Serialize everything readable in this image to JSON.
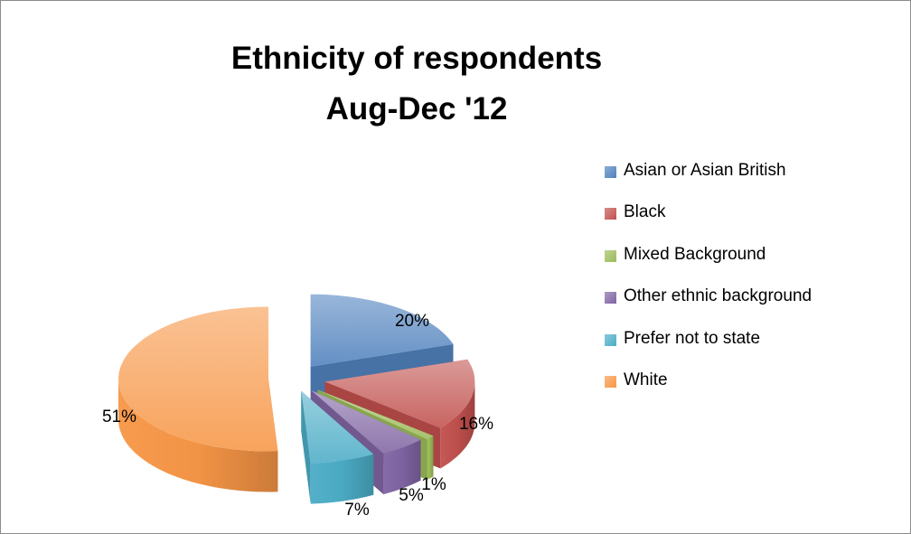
{
  "chart_data": {
    "type": "pie",
    "title": "Ethnicity of respondents",
    "subtitle": "Aug-Dec '12",
    "categories": [
      "Asian or Asian British",
      "Black",
      "Mixed Background",
      "Other ethnic background",
      "Prefer not to state",
      "White"
    ],
    "values": [
      20,
      16,
      1,
      5,
      7,
      51
    ],
    "labels": [
      "20%",
      "16%",
      "1%",
      "5%",
      "7%",
      "51%"
    ],
    "colors": [
      "#4f81bd",
      "#c0504d",
      "#9bbb59",
      "#8064a2",
      "#4bacc6",
      "#f79646"
    ],
    "legend_position": "right",
    "exploded": true,
    "style": "3d"
  }
}
